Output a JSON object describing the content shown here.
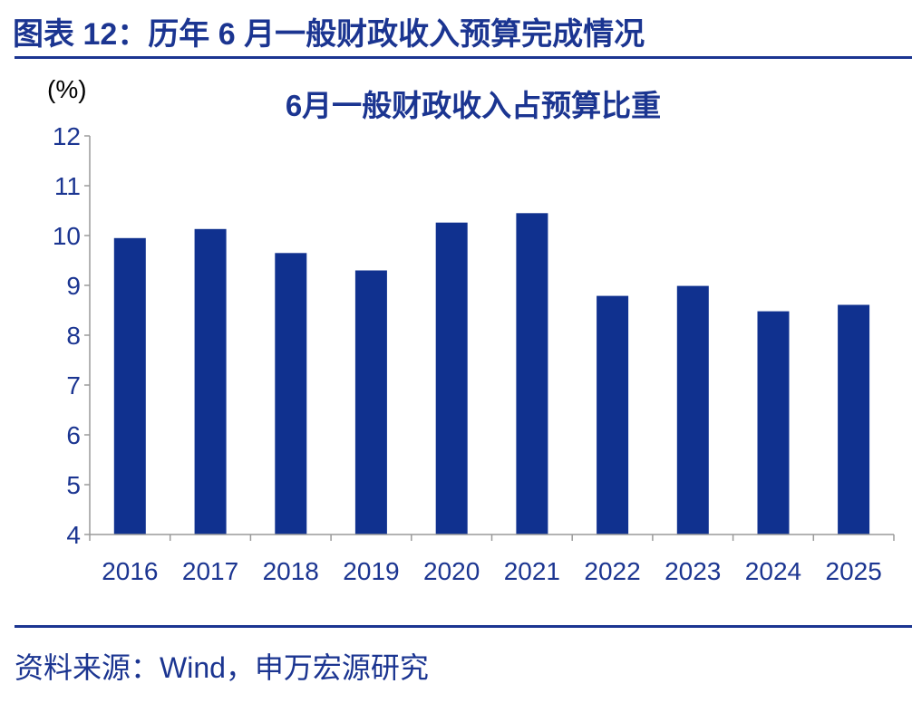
{
  "figure": {
    "title": "图表 12：历年 6 月一般财政收入预算完成情况",
    "source": "资料来源：Wind，申万宏源研究"
  },
  "colors": {
    "bar": "#10318f",
    "text": "#1b3591",
    "axis": "#9a9a9a"
  },
  "chart_data": {
    "type": "bar",
    "title": "6月一般财政收入占预算比重",
    "ylabel": "(%)",
    "xlabel": "",
    "categories": [
      "2016",
      "2017",
      "2018",
      "2019",
      "2020",
      "2021",
      "2022",
      "2023",
      "2024",
      "2025"
    ],
    "values": [
      9.95,
      10.13,
      9.65,
      9.3,
      10.26,
      10.45,
      8.79,
      8.99,
      8.48,
      8.61
    ],
    "ylim": [
      4,
      12
    ],
    "yticks": [
      "4",
      "5",
      "6",
      "7",
      "8",
      "9",
      "10",
      "11",
      "12"
    ],
    "grid": false,
    "legend": "none"
  }
}
